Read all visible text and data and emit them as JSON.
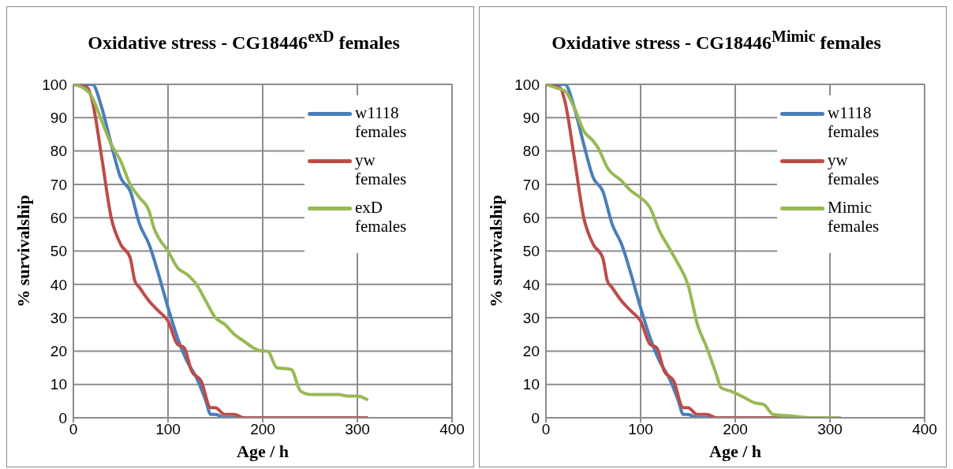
{
  "chart_data": [
    {
      "type": "line",
      "title": "Oxidative stress - CG18446$^{exD}$ females",
      "xlabel": "Age / h",
      "ylabel": "% survivalship",
      "xlim": [
        0,
        400
      ],
      "xticks": [
        0,
        100,
        200,
        300,
        400
      ],
      "ylim": [
        0,
        100
      ],
      "yticks": [
        0,
        10,
        20,
        30,
        40,
        50,
        60,
        70,
        80,
        90,
        100
      ],
      "grid": true,
      "legend": "top right",
      "marker": "none",
      "line_style": "solid",
      "series": [
        {
          "name": "w1118 females",
          "color": "#4a7ebb",
          "x": [
            0,
            20,
            30,
            40,
            50,
            60,
            70,
            80,
            90,
            100,
            110,
            120,
            130,
            140,
            145,
            150,
            160,
            310
          ],
          "values": [
            100,
            100,
            93,
            82,
            72,
            68,
            58,
            52,
            43,
            33,
            24,
            17,
            12,
            5,
            1,
            1,
            0,
            0
          ]
        },
        {
          "name": "yw females",
          "color": "#be4b48",
          "x": [
            0,
            15,
            20,
            30,
            40,
            50,
            60,
            65,
            70,
            80,
            90,
            100,
            110,
            117,
            125,
            135,
            145,
            150,
            160,
            170,
            180,
            310
          ],
          "values": [
            100,
            99,
            95,
            78,
            60,
            52,
            48,
            41,
            39,
            35,
            32,
            29,
            22,
            21,
            14,
            11,
            3,
            3,
            1,
            1,
            0,
            0
          ]
        },
        {
          "name": "exD females",
          "color": "#98b954",
          "x": [
            0,
            15,
            20,
            30,
            40,
            50,
            60,
            70,
            80,
            85,
            90,
            100,
            110,
            120,
            130,
            140,
            150,
            160,
            170,
            180,
            190,
            200,
            205,
            215,
            230,
            240,
            250,
            280,
            290,
            300,
            310
          ],
          "values": [
            100,
            98,
            96,
            89,
            82,
            77,
            70,
            66,
            62,
            57,
            54,
            50,
            45,
            43,
            40,
            35,
            30,
            28,
            25,
            23,
            21,
            20,
            20,
            15,
            14.5,
            8,
            7,
            7,
            6.5,
            6.5,
            5.5
          ]
        }
      ]
    },
    {
      "type": "line",
      "title": "Oxidative stress - CG18446$^{Mimic}$ females",
      "xlabel": "Age / h",
      "ylabel": "% survivalship",
      "xlim": [
        0,
        400
      ],
      "xticks": [
        0,
        100,
        200,
        300,
        400
      ],
      "ylim": [
        0,
        100
      ],
      "yticks": [
        0,
        10,
        20,
        30,
        40,
        50,
        60,
        70,
        80,
        90,
        100
      ],
      "grid": true,
      "legend": "top right",
      "marker": "none",
      "line_style": "solid",
      "series": [
        {
          "name": "w1118 females",
          "color": "#4a7ebb",
          "x": [
            0,
            20,
            30,
            40,
            50,
            60,
            70,
            80,
            90,
            100,
            110,
            120,
            130,
            140,
            145,
            150,
            160,
            310
          ],
          "values": [
            100,
            100,
            93,
            82,
            72,
            68,
            58,
            52,
            43,
            33,
            24,
            17,
            12,
            5,
            1,
            1,
            0,
            0
          ]
        },
        {
          "name": "yw females",
          "color": "#be4b48",
          "x": [
            0,
            15,
            20,
            30,
            40,
            50,
            60,
            65,
            70,
            80,
            90,
            100,
            110,
            117,
            125,
            135,
            145,
            150,
            160,
            170,
            180,
            310
          ],
          "values": [
            100,
            99,
            95,
            78,
            60,
            52,
            48,
            41,
            39,
            35,
            32,
            29,
            22,
            21,
            14,
            11,
            3,
            3,
            1,
            1,
            0,
            0
          ]
        },
        {
          "name": "Mimic females",
          "color": "#98b954",
          "x": [
            0,
            10,
            20,
            30,
            40,
            50,
            55,
            65,
            80,
            90,
            100,
            110,
            120,
            130,
            140,
            150,
            160,
            170,
            180,
            185,
            195,
            210,
            220,
            230,
            240,
            260,
            280,
            310
          ],
          "values": [
            100,
            99,
            98,
            93,
            86,
            83,
            81,
            75,
            71,
            68,
            66,
            63,
            56,
            51,
            46,
            40,
            28,
            21,
            13,
            9,
            8,
            6,
            4.5,
            4,
            1,
            0.5,
            0,
            0
          ]
        }
      ]
    }
  ]
}
